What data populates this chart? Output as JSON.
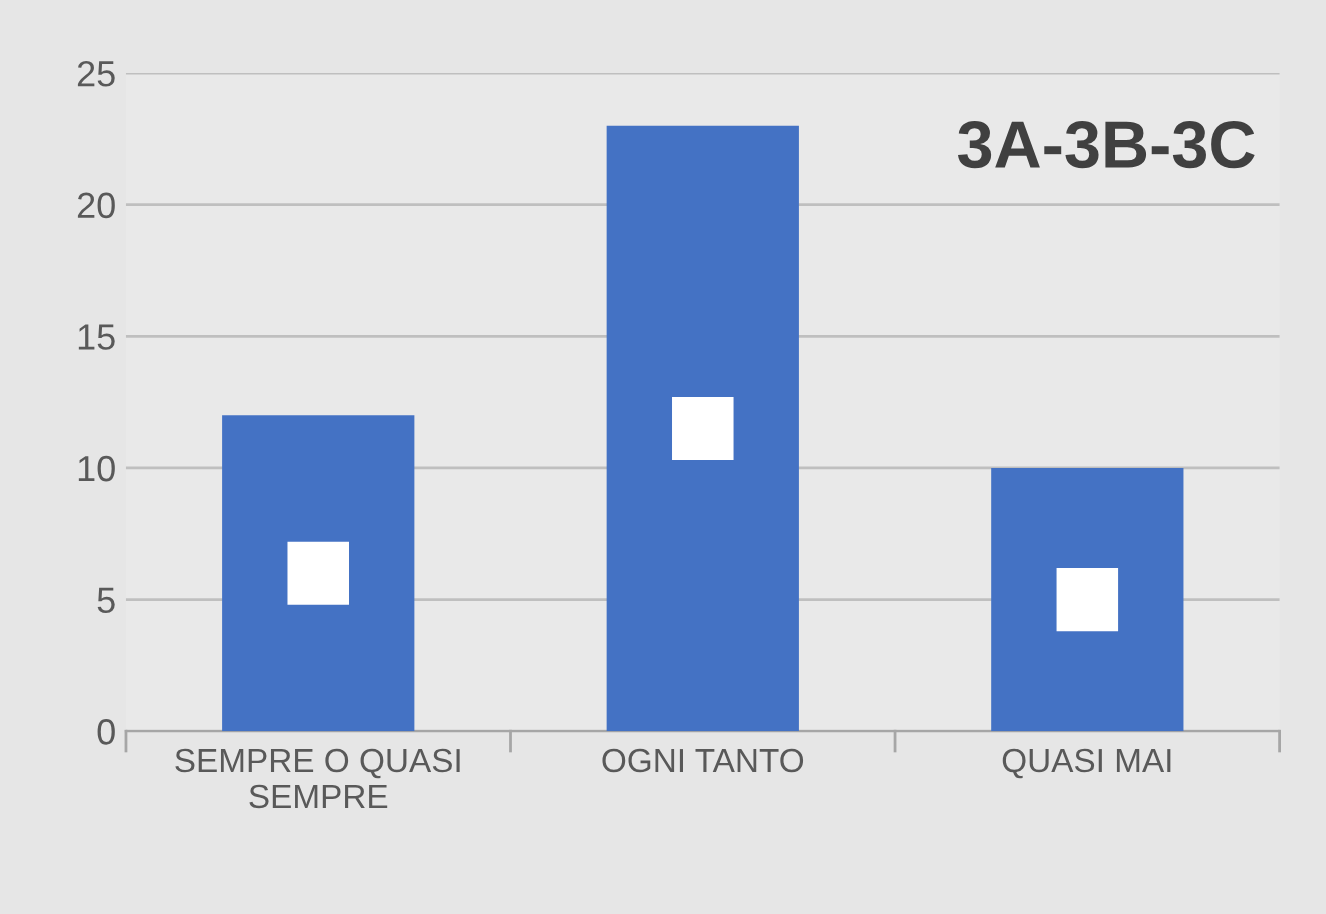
{
  "chart_data": {
    "type": "bar",
    "title": "3A-3B-3C",
    "categories": [
      "SEMPRE O QUASI\nSEMPRE",
      "OGNI TANTO",
      "QUASI MAI"
    ],
    "values": [
      12,
      23,
      10
    ],
    "color": "#4472c4",
    "ylim": [
      0,
      25
    ],
    "yticks": [
      0,
      5,
      10,
      15,
      20,
      25
    ],
    "grid": "y"
  }
}
